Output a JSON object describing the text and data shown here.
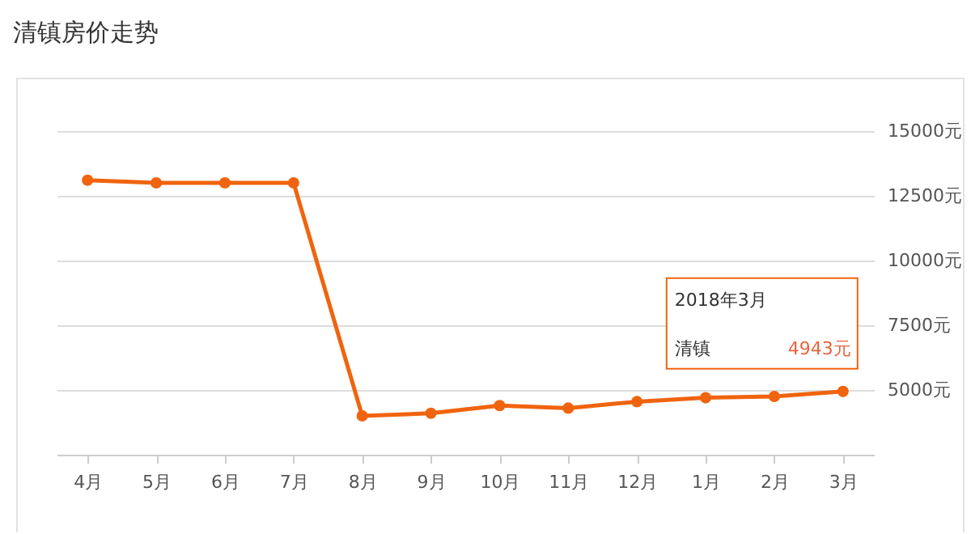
{
  "chart_data": {
    "type": "line",
    "title": "清镇房价走势",
    "categories": [
      "4月",
      "5月",
      "6月",
      "7月",
      "8月",
      "9月",
      "10月",
      "11月",
      "12月",
      "1月",
      "2月",
      "3月"
    ],
    "series": [
      {
        "name": "清镇",
        "color": "#f0640f",
        "values": [
          13100,
          13000,
          13000,
          13000,
          4000,
          4100,
          4400,
          4300,
          4550,
          4700,
          4750,
          4943
        ],
        "value_labels": [
          null,
          null,
          null,
          null,
          null,
          null,
          null,
          null,
          null,
          null,
          null,
          "4943元"
        ]
      }
    ],
    "ylim": [
      2500,
      15000
    ],
    "yticks": [
      {
        "value": 5000,
        "label": "5000元"
      },
      {
        "value": 7500,
        "label": "7500元"
      },
      {
        "value": 10000,
        "label": "10000元"
      },
      {
        "value": 12500,
        "label": "12500元"
      },
      {
        "value": 15000,
        "label": "15000元"
      }
    ],
    "grid": "y",
    "legend": false,
    "marker": "circle",
    "line_style": "solid",
    "annotations": [
      "2018年3月"
    ]
  }
}
